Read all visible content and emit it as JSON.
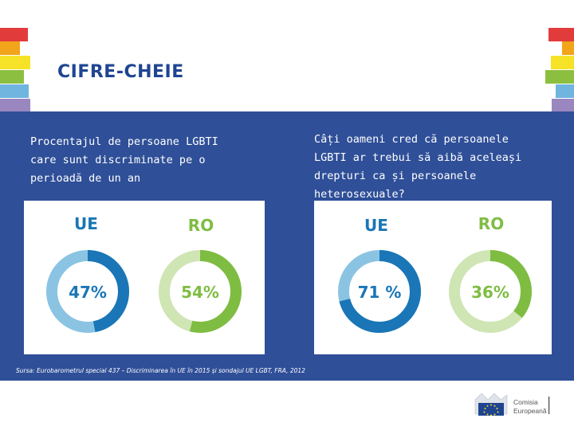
{
  "header": {
    "title": "CIFRE-CHEIE"
  },
  "decor": {
    "stripe_colors": [
      "#e23b3b",
      "#f2a51a",
      "#f6e227",
      "#8cbf3f",
      "#6fb5e0",
      "#9b87c0"
    ]
  },
  "left_panel": {
    "question": "Procentajul de persoane LGBTI care sunt discriminate pe o perioadă de un an",
    "question_lines": [
      "Procentajul de persoane LGBTI",
      "care sunt discriminate pe o",
      "perioadă de un an"
    ],
    "charts": [
      {
        "label": "UE",
        "value_text": "47%",
        "value": 47,
        "color": "#1a76b6",
        "track": "#8bc4e3"
      },
      {
        "label": "RO",
        "value_text": "54%",
        "value": 54,
        "color": "#7ebd42",
        "track": "#cfe5b4"
      }
    ]
  },
  "right_panel": {
    "question": "Câți oameni cred că persoanele LGBTI ar trebui să aibă aceleași drepturi ca și persoanele heterosexuale?",
    "question_lines": [
      "Câți oameni cred că persoanele",
      "LGBTI ar trebui să aibă aceleași",
      "drepturi ca și persoanele",
      "heterosexuale?"
    ],
    "charts": [
      {
        "label": "UE",
        "value_text": "71 %",
        "value": 71,
        "color": "#1a76b6",
        "track": "#8bc4e3"
      },
      {
        "label": "RO",
        "value_text": "36%",
        "value": 36,
        "color": "#7ebd42",
        "track": "#cfe5b4"
      }
    ]
  },
  "source": "Sursa: Eurobarometrul special 437 – Discriminarea în UE în 2015 și sondajul UE LGBT, FRA, 2012",
  "logo": {
    "line1": "Comisia",
    "line2": "Europeană"
  },
  "colors": {
    "title": "#1f4591",
    "band": "#2f4f98",
    "eu_blue": "#1a76b6",
    "ro_green": "#7ebd42"
  }
}
